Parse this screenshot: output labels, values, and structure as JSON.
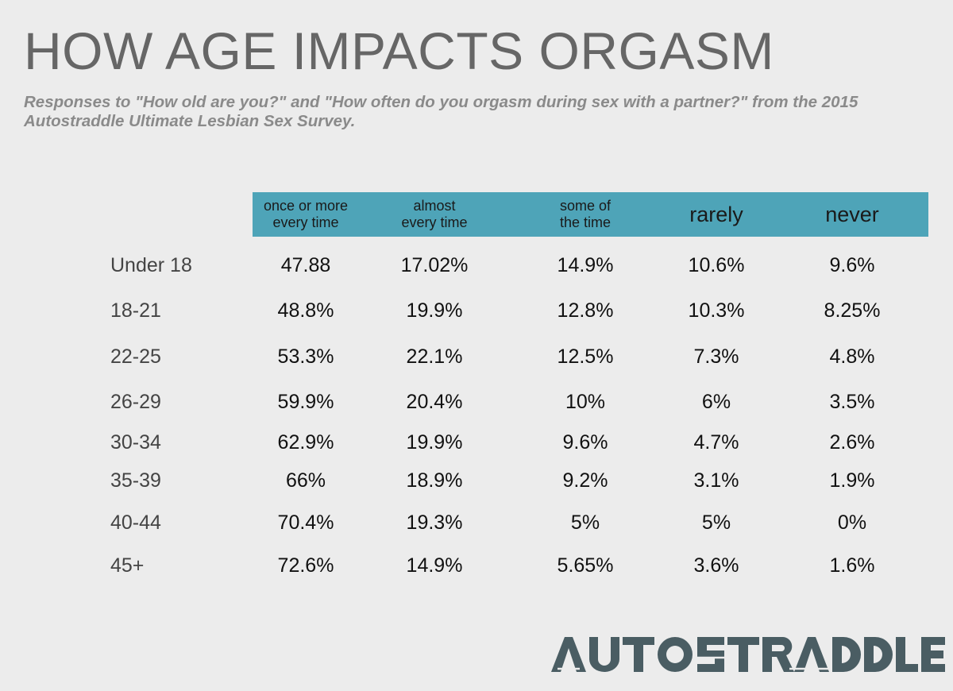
{
  "title": "HOW AGE IMPACTS ORGASM",
  "subtitle": "Responses to \"How old are you?\" and \"How often do you orgasm during sex with a partner?\" from the 2015 Autostraddle Ultimate Lesbian Sex Survey.",
  "logo_text": "AUTOSTRADDLE",
  "colors": {
    "header_band": "#4ea4b8",
    "background": "#ececec",
    "title": "#666666",
    "logo": "#4a5d63"
  },
  "chart_data": {
    "type": "table",
    "title": "HOW AGE IMPACTS ORGASM",
    "columns": [
      "once or more\nevery time",
      "almost\nevery time",
      "some of\nthe time",
      "rarely",
      "never"
    ],
    "rows": [
      {
        "label": "Under 18",
        "values": [
          "47.88",
          "17.02%",
          "14.9%",
          "10.6%",
          "9.6%"
        ]
      },
      {
        "label": "18-21",
        "values": [
          "48.8%",
          "19.9%",
          "12.8%",
          "10.3%",
          "8.25%"
        ]
      },
      {
        "label": "22-25",
        "values": [
          "53.3%",
          "22.1%",
          "12.5%",
          "7.3%",
          "4.8%"
        ]
      },
      {
        "label": "26-29",
        "values": [
          "59.9%",
          "20.4%",
          "10%",
          "6%",
          "3.5%"
        ]
      },
      {
        "label": "30-34",
        "values": [
          "62.9%",
          "19.9%",
          "9.6%",
          "4.7%",
          "2.6%"
        ]
      },
      {
        "label": "35-39",
        "values": [
          "66%",
          "18.9%",
          "9.2%",
          "3.1%",
          "1.9%"
        ]
      },
      {
        "label": "40-44",
        "values": [
          "70.4%",
          "19.3%",
          "5%",
          "5%",
          "0%"
        ]
      },
      {
        "label": "45+",
        "values": [
          "72.6%",
          "14.9%",
          "5.65%",
          "3.6%",
          "1.6%"
        ]
      }
    ]
  }
}
